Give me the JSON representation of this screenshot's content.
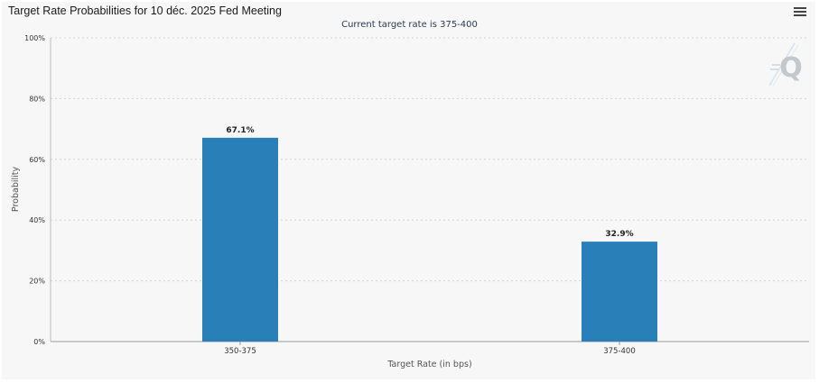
{
  "header": {
    "title": "Target Rate Probabilities for 10 déc. 2025 Fed Meeting",
    "menu_icon": "hamburger-menu-icon"
  },
  "watermark": {
    "icon": "q-logo-watermark-icon",
    "letter": "Q"
  },
  "colors": {
    "bar": "#2980b9",
    "panel": "#f7f7f7",
    "grid": "#d4d4d4"
  },
  "chart_data": {
    "type": "bar",
    "title": "Target Rate Probabilities for 10 déc. 2025 Fed Meeting",
    "subtitle": "Current target rate is 375-400",
    "categories": [
      "350-375",
      "375-400"
    ],
    "values": [
      67.1,
      32.9
    ],
    "data_labels": [
      "67.1%",
      "32.9%"
    ],
    "xlabel": "Target Rate (in bps)",
    "ylabel": "Probability",
    "ylim": [
      0,
      100
    ],
    "yticks": [
      0,
      20,
      40,
      60,
      80,
      100
    ],
    "ytick_labels": [
      "0%",
      "20%",
      "40%",
      "60%",
      "80%",
      "100%"
    ],
    "grid": true,
    "legend": false
  }
}
